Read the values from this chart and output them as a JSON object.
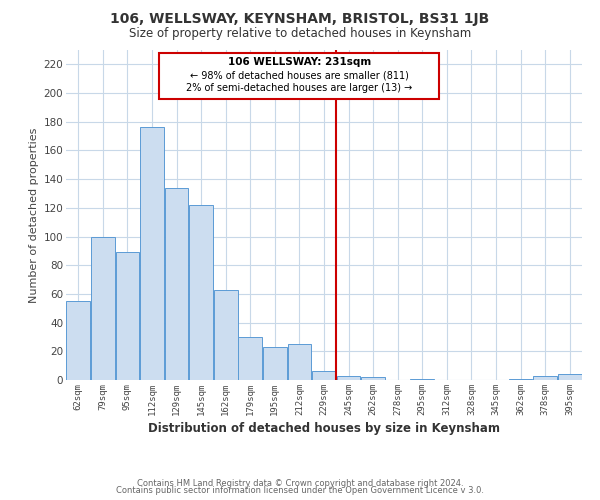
{
  "title": "106, WELLSWAY, KEYNSHAM, BRISTOL, BS31 1JB",
  "subtitle": "Size of property relative to detached houses in Keynsham",
  "xlabel": "Distribution of detached houses by size in Keynsham",
  "ylabel": "Number of detached properties",
  "categories": [
    "62sqm",
    "79sqm",
    "95sqm",
    "112sqm",
    "129sqm",
    "145sqm",
    "162sqm",
    "179sqm",
    "195sqm",
    "212sqm",
    "229sqm",
    "245sqm",
    "262sqm",
    "278sqm",
    "295sqm",
    "312sqm",
    "328sqm",
    "345sqm",
    "362sqm",
    "378sqm",
    "395sqm"
  ],
  "values": [
    55,
    100,
    89,
    176,
    134,
    122,
    63,
    30,
    23,
    25,
    6,
    3,
    2,
    0,
    1,
    0,
    0,
    0,
    1,
    3,
    4
  ],
  "bar_color": "#ccddf0",
  "bar_edge_color": "#5b9bd5",
  "grid_color": "#c8d8e8",
  "background_color": "#ffffff",
  "vline_color": "#cc0000",
  "annotation_title": "106 WELLSWAY: 231sqm",
  "annotation_line1": "← 98% of detached houses are smaller (811)",
  "annotation_line2": "2% of semi-detached houses are larger (13) →",
  "annotation_box_color": "#cc0000",
  "ylim": [
    0,
    230
  ],
  "yticks": [
    0,
    20,
    40,
    60,
    80,
    100,
    120,
    140,
    160,
    180,
    200,
    220
  ],
  "footer1": "Contains HM Land Registry data © Crown copyright and database right 2024.",
  "footer2": "Contains public sector information licensed under the Open Government Licence v 3.0."
}
